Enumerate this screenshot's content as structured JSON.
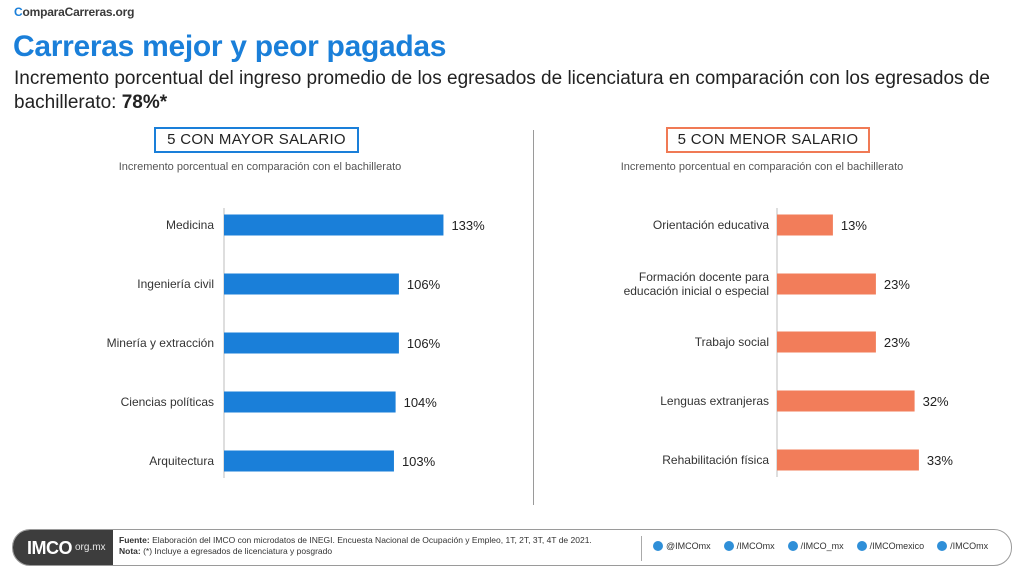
{
  "brand": {
    "first": "C",
    "rest": "omparaCarreras.org"
  },
  "title": "Carreras mejor y peor pagadas",
  "subtitle": {
    "text": "Incremento porcentual del ingreso promedio de los egresados de licenciatura en comparación con los egresados de bachillerato: ",
    "highlight": "78%*"
  },
  "colors": {
    "accent": "#1a7fd9",
    "high_bar": "#1a7fd9",
    "low_bar": "#f27d5a"
  },
  "chart_data": [
    {
      "type": "bar",
      "orientation": "horizontal",
      "title": "5 CON MAYOR SALARIO",
      "subtitle": "Incremento porcentual en comparación con el bachillerato",
      "categories": [
        "Medicina",
        "Ingeniería civil",
        "Minería y extracción",
        "Ciencias políticas",
        "Arquitectura"
      ],
      "values": [
        133,
        106,
        106,
        104,
        103
      ],
      "data_labels": [
        "133%",
        "106%",
        "106%",
        "104%",
        "103%"
      ],
      "unit": "%",
      "color": "#1a7fd9",
      "xlim": [
        0,
        140
      ]
    },
    {
      "type": "bar",
      "orientation": "horizontal",
      "title": "5 CON MENOR SALARIO",
      "subtitle": "Incremento porcentual en comparación con el bachillerato",
      "categories": [
        "Orientación educativa",
        "Formación docente para\neducación inicial o especial",
        "Trabajo social",
        "Lenguas extranjeras",
        "Rehabilitación física"
      ],
      "values": [
        13,
        23,
        23,
        32,
        33
      ],
      "data_labels": [
        "13%",
        "23%",
        "23%",
        "32%",
        "33%"
      ],
      "unit": "%",
      "color": "#f27d5a",
      "xlim": [
        0,
        140
      ]
    }
  ],
  "footer": {
    "logo_main": "IMCO",
    "logo_sub": "org.mx",
    "source_label": "Fuente:",
    "source_text": " Elaboración del IMCO  con microdatos de INEGI.  Encuesta Nacional de Ocupación y Empleo,  1T, 2T, 3T, 4T de 2021.",
    "note_label": "Nota:",
    "note_text": " (*) Incluye a egresados de licenciatura y posgrado",
    "socials": [
      {
        "icon": "twitter-icon",
        "label": "@IMCOmx"
      },
      {
        "icon": "facebook-icon",
        "label": "/IMCOmx"
      },
      {
        "icon": "instagram-icon",
        "label": "/IMCO_mx"
      },
      {
        "icon": "youtube-icon",
        "label": "/IMCOmexico"
      },
      {
        "icon": "linkedin-icon",
        "label": "/IMCOmx"
      }
    ]
  }
}
